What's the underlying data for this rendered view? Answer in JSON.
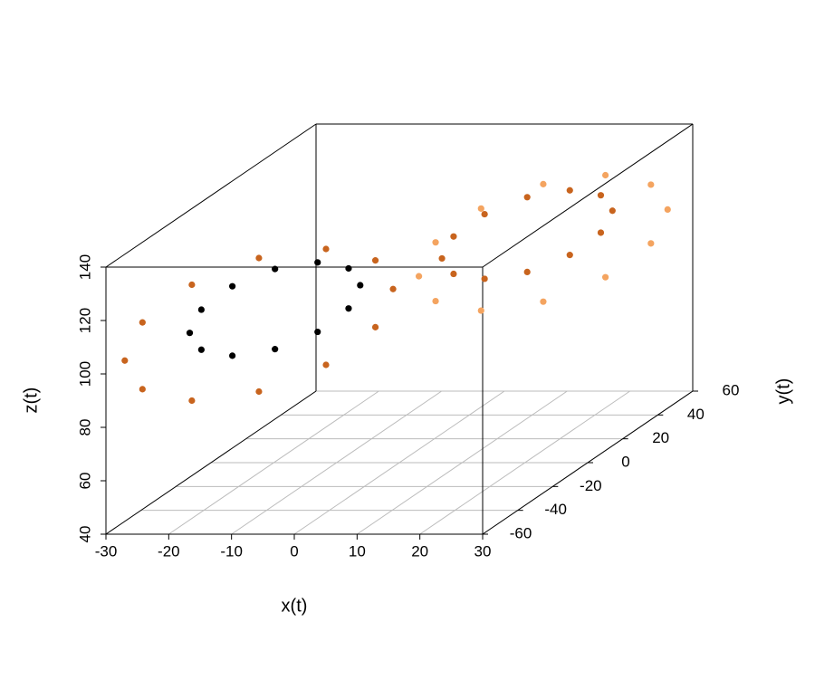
{
  "chart_data": {
    "type": "scatter3d",
    "xlabel": "x(t)",
    "ylabel": "y(t)",
    "zlabel": "z(t)",
    "xlim": [
      -30,
      30
    ],
    "ylim": [
      -60,
      60
    ],
    "zlim": [
      40,
      140
    ],
    "xticks": [
      -30,
      -20,
      -10,
      0,
      10,
      20,
      30
    ],
    "yticks": [
      -60,
      -40,
      -20,
      0,
      20,
      40,
      60
    ],
    "zticks": [
      40,
      60,
      80,
      100,
      120,
      140
    ],
    "grid": true,
    "series": [
      {
        "color": "#000000",
        "x": [
          -4,
          -5.1,
          -8,
          -12,
          -16,
          -18.9,
          -20,
          -18.9,
          -16,
          -12,
          -8,
          -5.1
        ],
        "y": [
          -8,
          -10.7,
          -18,
          -28,
          -38,
          -45.3,
          -48,
          -45.3,
          -38,
          -28,
          -18,
          -10.7
        ],
        "z": [
          110,
          117.5,
          123,
          125,
          123,
          117.5,
          110,
          102.5,
          97,
          95,
          97,
          102.5
        ]
      },
      {
        "color": "#c8641e",
        "x": [
          -1,
          -2.7,
          -7.5,
          -14,
          -20.5,
          -25.3,
          -27,
          -25.3,
          -20.5,
          -14,
          -7.5,
          -2.7,
          20,
          18.9,
          16,
          12,
          8,
          5.1,
          4,
          5.1,
          8,
          12,
          16,
          18.9
        ],
        "y": [
          0,
          -4,
          -15,
          -30,
          -45,
          -56,
          -60,
          -56,
          -45,
          -30,
          -15,
          -4,
          50,
          47.3,
          40,
          30,
          20,
          12.7,
          10,
          12.7,
          20,
          30,
          40,
          47.3
        ],
        "z": [
          105,
          117.5,
          126.7,
          130,
          126.7,
          117.5,
          105,
          92.5,
          83.3,
          80,
          83.3,
          92.5,
          112,
          119,
          124.1,
          126,
          124.1,
          119,
          112,
          105,
          99.9,
          98,
          99.9,
          105
        ]
      },
      {
        "color": "#f4a460",
        "x": [
          26,
          24.4,
          20,
          14,
          8,
          3.6,
          2,
          3.6,
          8,
          14,
          20,
          24.4
        ],
        "y": [
          60,
          56.2,
          46,
          32,
          18,
          7.8,
          4,
          7.8,
          18,
          32,
          46,
          56.2
        ],
        "z": [
          108,
          119,
          127.1,
          130,
          127.1,
          119,
          108,
          97,
          88.9,
          86,
          88.9,
          97
        ]
      }
    ]
  }
}
